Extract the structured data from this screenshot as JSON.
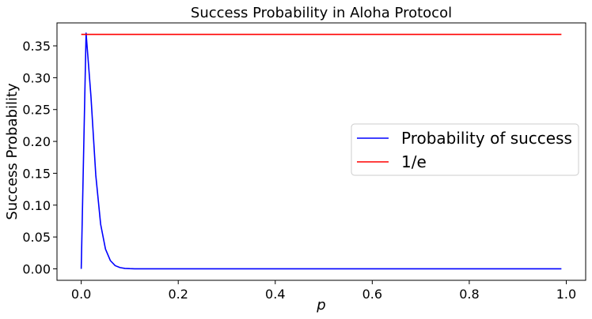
{
  "chart_data": {
    "type": "line",
    "title": "Success Probability in Aloha Protocol",
    "xlabel": "p",
    "ylabel": "Success Probability",
    "xlim": [
      -0.05,
      1.04
    ],
    "ylim": [
      -0.018,
      0.386
    ],
    "xticks": [
      0.0,
      0.2,
      0.4,
      0.6,
      0.8,
      1.0
    ],
    "xtick_labels": [
      "0.0",
      "0.2",
      "0.4",
      "0.6",
      "0.8",
      "1.0"
    ],
    "yticks": [
      0.0,
      0.05,
      0.1,
      0.15,
      0.2,
      0.25,
      0.3,
      0.35
    ],
    "ytick_labels": [
      "0.00",
      "0.05",
      "0.10",
      "0.15",
      "0.20",
      "0.25",
      "0.30",
      "0.35"
    ],
    "grid": false,
    "legend_position": "center-right",
    "series": [
      {
        "name": "Probability of success",
        "color": "#0000ff",
        "x": [
          0.0,
          0.01,
          0.02,
          0.03,
          0.04,
          0.05,
          0.06,
          0.07,
          0.08,
          0.09,
          0.1,
          0.11,
          0.12,
          0.15,
          0.2,
          0.3,
          0.4,
          0.5,
          0.6,
          0.7,
          0.8,
          0.9,
          0.99
        ],
        "y": [
          0.0,
          0.37,
          0.271,
          0.147,
          0.07,
          0.031,
          0.013,
          0.005,
          0.002,
          0.0007,
          0.0003,
          0.0001,
          4e-05,
          0.0,
          0.0,
          0.0,
          0.0,
          0.0,
          0.0,
          0.0,
          0.0,
          0.0,
          0.0
        ]
      },
      {
        "name": "1/e",
        "color": "#ff0000",
        "x": [
          0.0,
          0.99
        ],
        "y": [
          0.3679,
          0.3679
        ]
      }
    ]
  }
}
